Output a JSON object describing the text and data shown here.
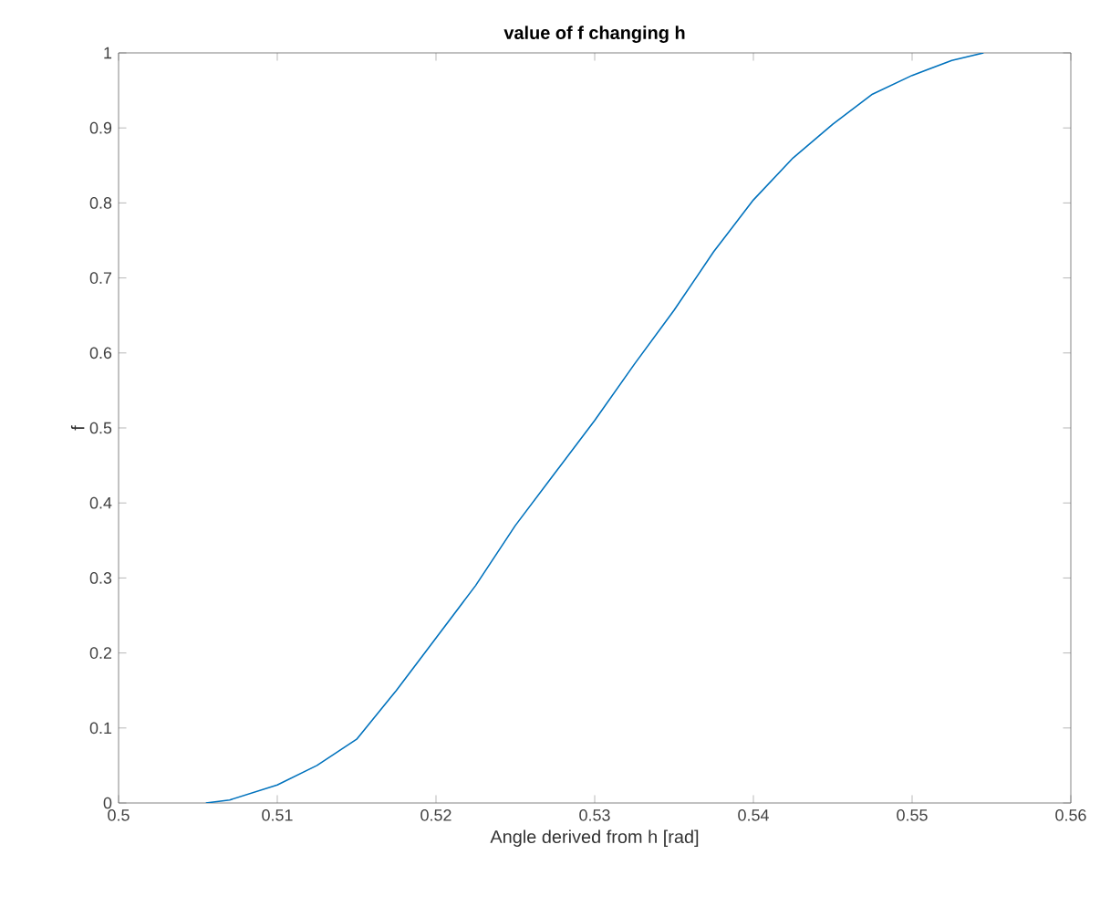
{
  "chart_data": {
    "type": "line",
    "title": "value of f changing h",
    "xlabel": "Angle derived from h [rad]",
    "ylabel": "f",
    "x": [
      0.5055,
      0.507,
      0.51,
      0.5125,
      0.515,
      0.5175,
      0.52,
      0.5225,
      0.525,
      0.5275,
      0.53,
      0.5325,
      0.535,
      0.5375,
      0.54,
      0.5425,
      0.545,
      0.5475,
      0.55,
      0.5525,
      0.5545
    ],
    "series": [
      {
        "color": "#0072bd",
        "values": [
          0,
          0.004,
          0.024,
          0.05,
          0.085,
          0.15,
          0.22,
          0.29,
          0.37,
          0.44,
          0.51,
          0.585,
          0.657,
          0.735,
          0.804,
          0.86,
          0.905,
          0.945,
          0.97,
          0.99,
          1
        ]
      }
    ],
    "xlim": [
      0.5,
      0.56
    ],
    "ylim": [
      0,
      1
    ],
    "xticks": [
      0.5,
      0.51,
      0.52,
      0.53,
      0.54,
      0.55,
      0.56
    ],
    "yticks": [
      0,
      0.1,
      0.2,
      0.3,
      0.4,
      0.5,
      0.6,
      0.7,
      0.8,
      0.9,
      1
    ],
    "grid": false,
    "marker": "none",
    "line_style": "solid"
  }
}
